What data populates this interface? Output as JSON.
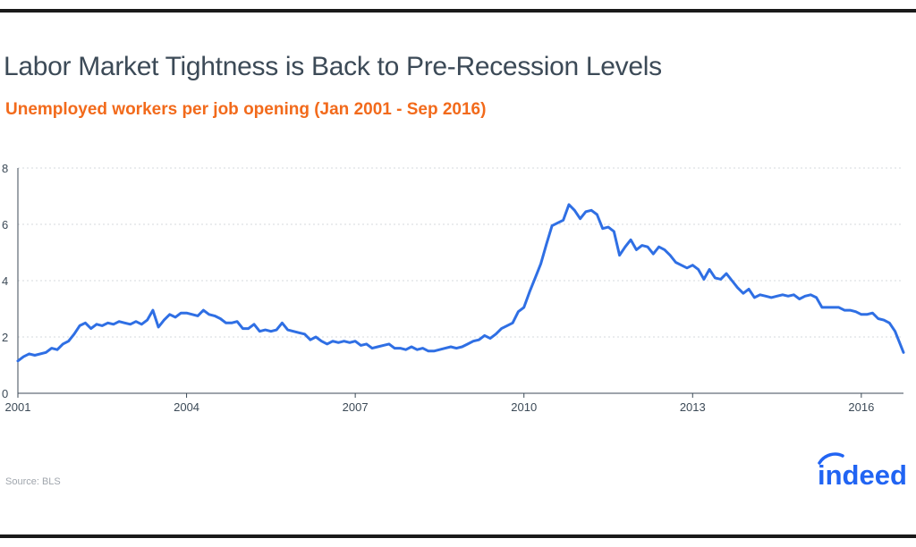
{
  "title": "Labor Market Tightness is Back to Pre-Recession Levels",
  "subtitle": "Unemployed workers per job opening (Jan 2001 - Sep 2016)",
  "source": "Source: BLS",
  "brand": "indeed",
  "colors": {
    "line": "#2f6fe4",
    "title": "#3c4a57",
    "subtitle": "#f26a1b",
    "brand": "#2164f3"
  },
  "chart_data": {
    "type": "line",
    "title": "Unemployed workers per job opening (Jan 2001 - Sep 2016)",
    "xlabel": "",
    "ylabel": "",
    "ylim": [
      0,
      8
    ],
    "xlim": [
      2001.0,
      2016.75
    ],
    "yticks": [
      0,
      2,
      4,
      6,
      8
    ],
    "xticks": [
      2001,
      2004,
      2007,
      2010,
      2013,
      2016
    ],
    "grid": true,
    "legend": "none",
    "series": [
      {
        "name": "",
        "points": [
          [
            2001.0,
            1.15
          ],
          [
            2001.1,
            1.3
          ],
          [
            2001.2,
            1.4
          ],
          [
            2001.3,
            1.35
          ],
          [
            2001.5,
            1.45
          ],
          [
            2001.6,
            1.6
          ],
          [
            2001.7,
            1.55
          ],
          [
            2001.8,
            1.75
          ],
          [
            2001.9,
            1.85
          ],
          [
            2002.0,
            2.1
          ],
          [
            2002.1,
            2.4
          ],
          [
            2002.2,
            2.5
          ],
          [
            2002.3,
            2.3
          ],
          [
            2002.4,
            2.45
          ],
          [
            2002.5,
            2.4
          ],
          [
            2002.6,
            2.5
          ],
          [
            2002.7,
            2.45
          ],
          [
            2002.8,
            2.55
          ],
          [
            2002.9,
            2.5
          ],
          [
            2003.0,
            2.45
          ],
          [
            2003.1,
            2.55
          ],
          [
            2003.2,
            2.45
          ],
          [
            2003.3,
            2.6
          ],
          [
            2003.4,
            2.95
          ],
          [
            2003.5,
            2.35
          ],
          [
            2003.6,
            2.6
          ],
          [
            2003.7,
            2.8
          ],
          [
            2003.8,
            2.7
          ],
          [
            2003.9,
            2.85
          ],
          [
            2004.0,
            2.85
          ],
          [
            2004.1,
            2.8
          ],
          [
            2004.2,
            2.75
          ],
          [
            2004.3,
            2.95
          ],
          [
            2004.4,
            2.8
          ],
          [
            2004.5,
            2.75
          ],
          [
            2004.6,
            2.65
          ],
          [
            2004.7,
            2.5
          ],
          [
            2004.8,
            2.5
          ],
          [
            2004.9,
            2.55
          ],
          [
            2005.0,
            2.3
          ],
          [
            2005.1,
            2.3
          ],
          [
            2005.2,
            2.45
          ],
          [
            2005.3,
            2.2
          ],
          [
            2005.4,
            2.25
          ],
          [
            2005.5,
            2.2
          ],
          [
            2005.6,
            2.25
          ],
          [
            2005.7,
            2.5
          ],
          [
            2005.8,
            2.25
          ],
          [
            2005.9,
            2.2
          ],
          [
            2006.0,
            2.15
          ],
          [
            2006.1,
            2.1
          ],
          [
            2006.2,
            1.9
          ],
          [
            2006.3,
            2.0
          ],
          [
            2006.4,
            1.85
          ],
          [
            2006.5,
            1.75
          ],
          [
            2006.6,
            1.85
          ],
          [
            2006.7,
            1.8
          ],
          [
            2006.8,
            1.85
          ],
          [
            2006.9,
            1.8
          ],
          [
            2007.0,
            1.85
          ],
          [
            2007.1,
            1.7
          ],
          [
            2007.2,
            1.75
          ],
          [
            2007.3,
            1.6
          ],
          [
            2007.4,
            1.65
          ],
          [
            2007.5,
            1.7
          ],
          [
            2007.6,
            1.75
          ],
          [
            2007.7,
            1.6
          ],
          [
            2007.8,
            1.6
          ],
          [
            2007.9,
            1.55
          ],
          [
            2008.0,
            1.65
          ],
          [
            2008.1,
            1.55
          ],
          [
            2008.2,
            1.6
          ],
          [
            2008.3,
            1.5
          ],
          [
            2008.4,
            1.5
          ],
          [
            2008.5,
            1.55
          ],
          [
            2008.6,
            1.6
          ],
          [
            2008.7,
            1.65
          ],
          [
            2008.8,
            1.6
          ],
          [
            2008.9,
            1.65
          ],
          [
            2009.0,
            1.75
          ],
          [
            2009.1,
            1.85
          ],
          [
            2009.2,
            1.9
          ],
          [
            2009.3,
            2.05
          ],
          [
            2009.4,
            1.95
          ],
          [
            2009.5,
            2.1
          ],
          [
            2009.6,
            2.3
          ],
          [
            2009.7,
            2.4
          ],
          [
            2009.8,
            2.5
          ],
          [
            2009.9,
            2.9
          ],
          [
            2010.0,
            3.05
          ],
          [
            2010.1,
            3.6
          ],
          [
            2010.2,
            4.1
          ],
          [
            2010.3,
            4.6
          ],
          [
            2010.4,
            5.3
          ],
          [
            2010.5,
            5.95
          ],
          [
            2010.6,
            6.05
          ],
          [
            2010.7,
            6.15
          ],
          [
            2010.8,
            6.7
          ],
          [
            2010.9,
            6.5
          ],
          [
            2011.0,
            6.2
          ],
          [
            2011.1,
            6.45
          ],
          [
            2011.2,
            6.5
          ],
          [
            2011.3,
            6.35
          ],
          [
            2011.4,
            5.85
          ],
          [
            2011.5,
            5.9
          ],
          [
            2011.6,
            5.75
          ],
          [
            2011.7,
            4.9
          ],
          [
            2011.8,
            5.2
          ],
          [
            2011.9,
            5.45
          ],
          [
            2012.0,
            5.1
          ],
          [
            2012.1,
            5.25
          ],
          [
            2012.2,
            5.2
          ],
          [
            2012.3,
            4.95
          ],
          [
            2012.4,
            5.2
          ],
          [
            2012.5,
            5.1
          ],
          [
            2012.6,
            4.9
          ],
          [
            2012.7,
            4.65
          ],
          [
            2012.8,
            4.55
          ],
          [
            2012.9,
            4.45
          ],
          [
            2013.0,
            4.55
          ],
          [
            2013.1,
            4.4
          ],
          [
            2013.2,
            4.05
          ],
          [
            2013.3,
            4.4
          ],
          [
            2013.4,
            4.1
          ],
          [
            2013.5,
            4.05
          ],
          [
            2013.6,
            4.25
          ],
          [
            2013.7,
            4.0
          ],
          [
            2013.8,
            3.75
          ],
          [
            2013.9,
            3.55
          ],
          [
            2014.0,
            3.7
          ],
          [
            2014.1,
            3.4
          ],
          [
            2014.2,
            3.5
          ],
          [
            2014.3,
            3.45
          ],
          [
            2014.4,
            3.4
          ],
          [
            2014.5,
            3.45
          ],
          [
            2014.6,
            3.5
          ],
          [
            2014.7,
            3.45
          ],
          [
            2014.8,
            3.5
          ],
          [
            2014.9,
            3.35
          ],
          [
            2015.0,
            3.45
          ],
          [
            2015.1,
            3.5
          ],
          [
            2015.2,
            3.4
          ],
          [
            2015.3,
            3.05
          ],
          [
            2015.4,
            3.05
          ],
          [
            2015.5,
            3.05
          ],
          [
            2015.6,
            3.05
          ],
          [
            2015.7,
            2.95
          ],
          [
            2015.8,
            2.95
          ],
          [
            2015.9,
            2.9
          ],
          [
            2016.0,
            2.8
          ],
          [
            2016.1,
            2.8
          ],
          [
            2016.2,
            2.85
          ],
          [
            2016.3,
            2.65
          ],
          [
            2016.4,
            2.6
          ],
          [
            2016.5,
            2.5
          ],
          [
            2016.6,
            2.2
          ],
          [
            2016.75,
            1.45
          ]
        ]
      }
    ]
  }
}
